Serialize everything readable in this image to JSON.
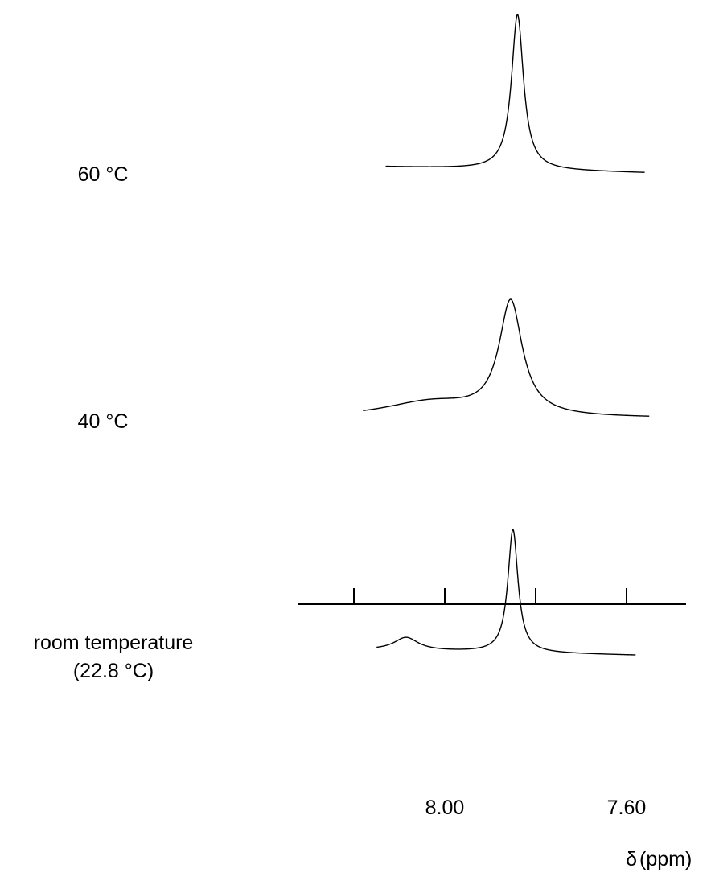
{
  "chart_data": {
    "type": "line",
    "title": "",
    "x_axis": {
      "label_symbol": "δ",
      "label_unit": "(ppm)",
      "reversed": true,
      "xlim": [
        8.26,
        7.47
      ],
      "ticks": [
        8.2,
        8.0,
        7.8,
        7.6
      ],
      "tick_labels": [
        {
          "value": 8.0,
          "label": "8.00"
        },
        {
          "value": 7.6,
          "label": "7.60"
        }
      ]
    },
    "y_axis": {
      "shown": false
    },
    "series": [
      {
        "name": "60 °C",
        "label_line1": "60 °C",
        "label_line2": "",
        "x_range": [
          8.13,
          7.56
        ],
        "baseline_level": [
          0.02,
          -0.02
        ],
        "peaks": [
          {
            "center": 7.84,
            "height": 1.0,
            "width": 0.032
          }
        ]
      },
      {
        "name": "40 °C",
        "label_line1": "40 °C",
        "label_line2": "",
        "x_range": [
          8.18,
          7.55
        ],
        "baseline_level": [
          0.0,
          0.0
        ],
        "peaks": [
          {
            "center": 7.855,
            "height": 0.86,
            "width": 0.062
          },
          {
            "center": 8.03,
            "height": 0.12,
            "width": 0.26
          }
        ]
      },
      {
        "name": "room temperature (22.8 °C)",
        "label_line1": "room temperature",
        "label_line2": "(22.8 °C)",
        "x_range": [
          8.15,
          7.58
        ],
        "baseline_level": [
          0.0,
          -0.04
        ],
        "peaks": [
          {
            "center": 7.85,
            "height": 0.95,
            "width": 0.027
          },
          {
            "center": 8.085,
            "height": 0.1,
            "width": 0.065
          }
        ]
      }
    ]
  }
}
